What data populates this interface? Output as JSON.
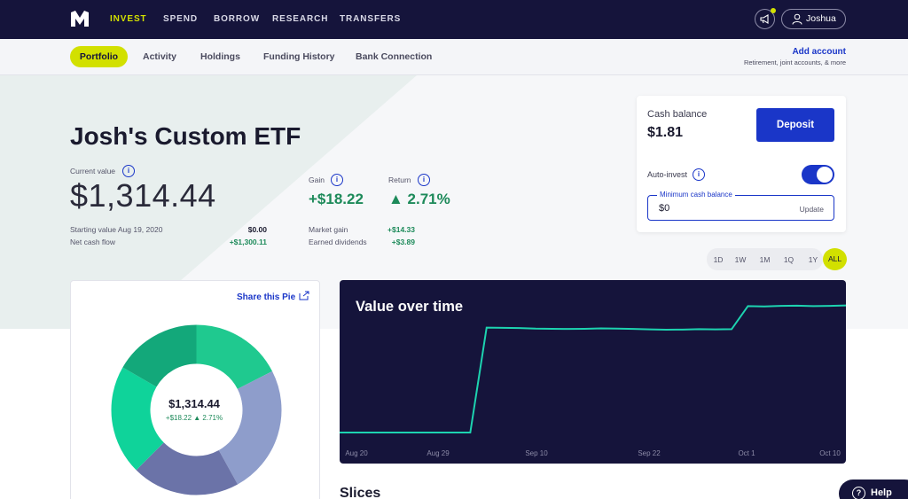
{
  "nav": {
    "links": [
      "INVEST",
      "SPEND",
      "BORROW",
      "RESEARCH",
      "TRANSFERS"
    ],
    "user": "Joshua"
  },
  "subnav": {
    "tabs": [
      "Portfolio",
      "Activity",
      "Holdings",
      "Funding History",
      "Bank Connection"
    ],
    "add_account": "Add account",
    "add_account_sub": "Retirement, joint accounts, & more"
  },
  "portfolio": {
    "title": "Josh's Custom ETF",
    "current_value_label": "Current value",
    "current_value": "$1,314.44",
    "starting_label": "Starting value Aug 19, 2020",
    "starting_value": "$0.00",
    "net_cash_label": "Net cash flow",
    "net_cash_value": "+$1,300.11",
    "gain_label": "Gain",
    "gain_value": "+$18.22",
    "return_label": "Return",
    "return_value": "▲ 2.71%",
    "market_gain_label": "Market gain",
    "market_gain_value": "+$14.33",
    "dividends_label": "Earned dividends",
    "dividends_value": "+$3.89"
  },
  "cash": {
    "label": "Cash balance",
    "value": "$1.81",
    "deposit": "Deposit",
    "auto_invest": "Auto-invest",
    "auto_invest_on": true,
    "min_label": "Minimum cash balance",
    "min_value": "$0",
    "update": "Update"
  },
  "ranges": [
    "1D",
    "1W",
    "1M",
    "1Q",
    "1Y",
    "ALL"
  ],
  "pie": {
    "share": "Share this Pie",
    "value": "$1,314.44",
    "sub": "+$18.22 ▲ 2.71%",
    "colors": [
      "#1fc98f",
      "#8e9dcb",
      "#6b73a8",
      "#0fd39a",
      "#13a87a"
    ]
  },
  "chart_data": {
    "type": "line",
    "title": "Value over time",
    "x_ticks": [
      "Aug 20",
      "Aug 29",
      "Sep 10",
      "Sep 22",
      "Oct 1",
      "Oct 10"
    ],
    "series": [
      {
        "values": [
          0,
          0,
          0,
          0,
          0,
          0,
          0,
          0,
          0,
          1090,
          1088,
          1086,
          1080,
          1078,
          1076,
          1078,
          1082,
          1080,
          1076,
          1072,
          1068,
          1070,
          1074,
          1072,
          1074,
          1314,
          1310,
          1316,
          1318,
          1314,
          1316,
          1320
        ]
      }
    ],
    "color": "#1dd3b0"
  },
  "slices_heading": "Slices",
  "help": "Help"
}
